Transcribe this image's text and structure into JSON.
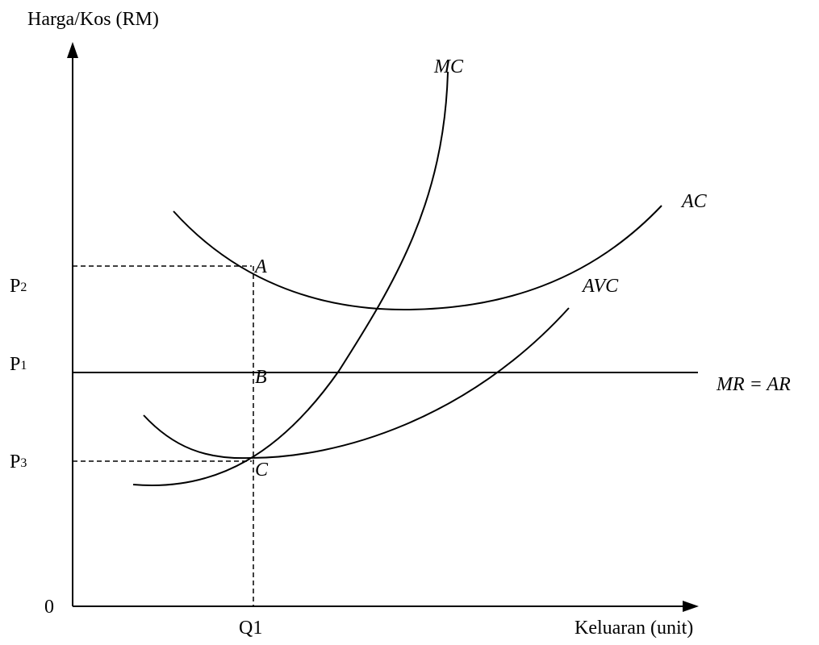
{
  "axes": {
    "y_title": "Harga/Kos (RM)",
    "x_title": "Keluaran (unit)",
    "origin": "0"
  },
  "y_ticks": {
    "p2": {
      "main": "P",
      "sub": "2"
    },
    "p1": {
      "main": "P",
      "sub": "1"
    },
    "p3": {
      "main": "P",
      "sub": "3"
    }
  },
  "x_ticks": {
    "q1": "Q1"
  },
  "curves": {
    "mc": "MC",
    "ac": "AC",
    "avc": "AVC",
    "mr_ar": "MR = AR"
  },
  "points": {
    "a": "A",
    "b": "B",
    "c": "C"
  }
}
